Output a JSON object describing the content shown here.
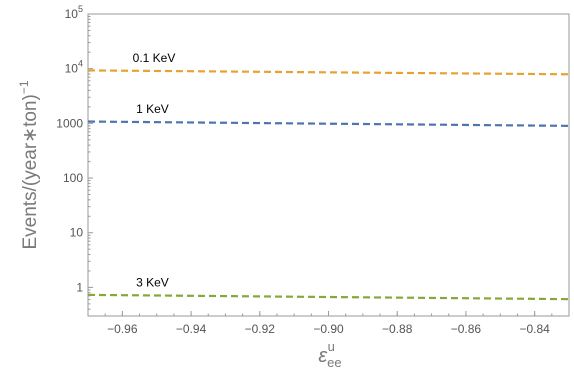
{
  "chart_data": {
    "type": "line",
    "title": "",
    "xlabel": "ε",
    "xlabel_superscript": "u",
    "xlabel_subscript": "ee",
    "ylabel": "Events/(year∗ton)",
    "ylabel_superscript": "−1",
    "xlim": [
      -0.97,
      -0.83
    ],
    "ylim": [
      0.3,
      100000
    ],
    "yscale": "log",
    "grid": false,
    "legend": "none",
    "x_ticks": [
      -0.96,
      -0.94,
      -0.92,
      -0.9,
      -0.88,
      -0.86,
      -0.84
    ],
    "x_tick_labels": [
      "−0.96",
      "−0.94",
      "−0.92",
      "−0.90",
      "−0.88",
      "−0.86",
      "−0.84"
    ],
    "y_ticks": [
      1,
      10,
      100,
      1000,
      10000,
      100000
    ],
    "y_tick_labels": [
      {
        "base": "1",
        "sup": ""
      },
      {
        "base": "10",
        "sup": ""
      },
      {
        "base": "100",
        "sup": ""
      },
      {
        "base": "1000",
        "sup": ""
      },
      {
        "base": "10",
        "sup": "4"
      },
      {
        "base": "10",
        "sup": "5"
      }
    ],
    "series": [
      {
        "name": "0.1 KeV",
        "color": "#e8a230",
        "style": "dashed",
        "x": [
          -0.97,
          -0.83
        ],
        "y": [
          9300,
          7900
        ],
        "label_x": -0.957
      },
      {
        "name": "1 KeV",
        "color": "#4f74b0",
        "style": "dashed",
        "x": [
          -0.97,
          -0.83
        ],
        "y": [
          1080,
          900
        ],
        "label_x": -0.956
      },
      {
        "name": "3 KeV",
        "color": "#86a83a",
        "style": "dashed",
        "x": [
          -0.97,
          -0.83
        ],
        "y": [
          0.73,
          0.61
        ],
        "label_x": -0.956
      }
    ]
  }
}
